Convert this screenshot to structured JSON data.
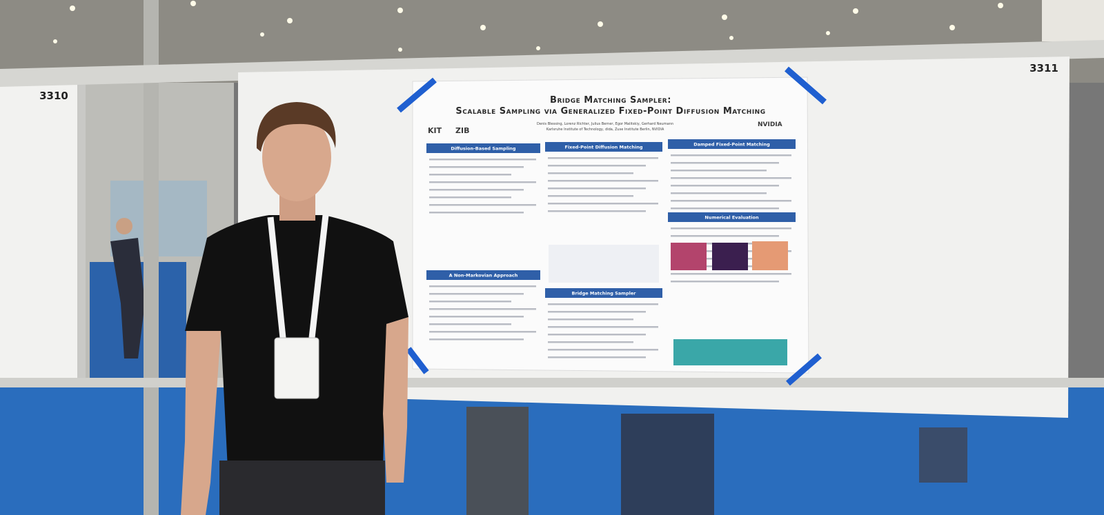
{
  "board_numbers": [
    "3310",
    "3311"
  ],
  "poster": {
    "title": "Bridge Matching Sampler:",
    "subtitle": "Scalable Sampling via Generalized Fixed-Point Diffusion Matching",
    "authors": "Denis Blessing, Lorenz Richter, Julius Berner, Egor Malitskiy, Gerhard Neumann",
    "affiliations": "Karlsruhe Institute of Technology, dida, Zuse Institute Berlin, NVIDIA",
    "logos": [
      "KIT",
      "ZIB",
      "NVIDIA"
    ],
    "sections": [
      "Diffusion-Based Sampling",
      "A Non-Markovian Approach",
      "Fixed-Point Diffusion Matching",
      "Bridge Matching Sampler",
      "Damped Fixed-Point Matching",
      "Numerical Evaluation"
    ]
  }
}
